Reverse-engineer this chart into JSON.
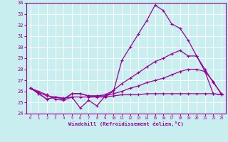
{
  "xlabel": "Windchill (Refroidissement éolien,°C)",
  "x_ticks": [
    0,
    1,
    2,
    3,
    4,
    5,
    6,
    7,
    8,
    9,
    10,
    11,
    12,
    13,
    14,
    15,
    16,
    17,
    18,
    19,
    20,
    21,
    22,
    23
  ],
  "ylim": [
    24,
    34
  ],
  "xlim": [
    -0.5,
    23.5
  ],
  "yticks": [
    24,
    25,
    26,
    27,
    28,
    29,
    30,
    31,
    32,
    33,
    34
  ],
  "background_color": "#c8eef0",
  "line_color": "#990099",
  "grid_color": "#ffffff",
  "line1_x": [
    0,
    1,
    2,
    3,
    4,
    5,
    6,
    7,
    8,
    9,
    10,
    11,
    12,
    13,
    14,
    15,
    16,
    17,
    18,
    19,
    20,
    21,
    22,
    23
  ],
  "line1_y": [
    26.3,
    26.0,
    25.7,
    25.3,
    25.2,
    25.5,
    24.5,
    25.2,
    24.7,
    25.6,
    26.0,
    28.8,
    30.0,
    31.2,
    32.4,
    33.8,
    33.3,
    32.1,
    31.7,
    30.6,
    29.2,
    27.8,
    26.9,
    25.7
  ],
  "line2_x": [
    0,
    1,
    2,
    3,
    4,
    5,
    6,
    7,
    8,
    9,
    10,
    11,
    12,
    13,
    14,
    15,
    16,
    17,
    18,
    19,
    20,
    21,
    22,
    23
  ],
  "line2_y": [
    26.3,
    25.8,
    25.3,
    25.5,
    25.3,
    25.8,
    25.8,
    25.6,
    25.6,
    25.7,
    26.1,
    26.7,
    27.2,
    27.7,
    28.2,
    28.7,
    29.0,
    29.4,
    29.7,
    29.2,
    29.2,
    28.0,
    26.8,
    25.8
  ],
  "line3_x": [
    0,
    1,
    2,
    3,
    4,
    5,
    6,
    7,
    8,
    9,
    10,
    11,
    12,
    13,
    14,
    15,
    16,
    17,
    18,
    19,
    20,
    21,
    22,
    23
  ],
  "line3_y": [
    26.3,
    25.8,
    25.3,
    25.5,
    25.3,
    25.8,
    25.8,
    25.6,
    25.6,
    25.6,
    25.8,
    26.0,
    26.3,
    26.5,
    26.8,
    27.0,
    27.2,
    27.5,
    27.8,
    28.0,
    28.0,
    27.8,
    25.8,
    25.7
  ],
  "line4_x": [
    0,
    1,
    2,
    3,
    4,
    5,
    6,
    7,
    8,
    9,
    10,
    11,
    12,
    13,
    14,
    15,
    16,
    17,
    18,
    19,
    20,
    21,
    22,
    23
  ],
  "line4_y": [
    26.3,
    25.9,
    25.6,
    25.5,
    25.4,
    25.5,
    25.5,
    25.5,
    25.5,
    25.5,
    25.6,
    25.7,
    25.7,
    25.7,
    25.8,
    25.8,
    25.8,
    25.8,
    25.8,
    25.8,
    25.8,
    25.8,
    25.8,
    25.7
  ]
}
